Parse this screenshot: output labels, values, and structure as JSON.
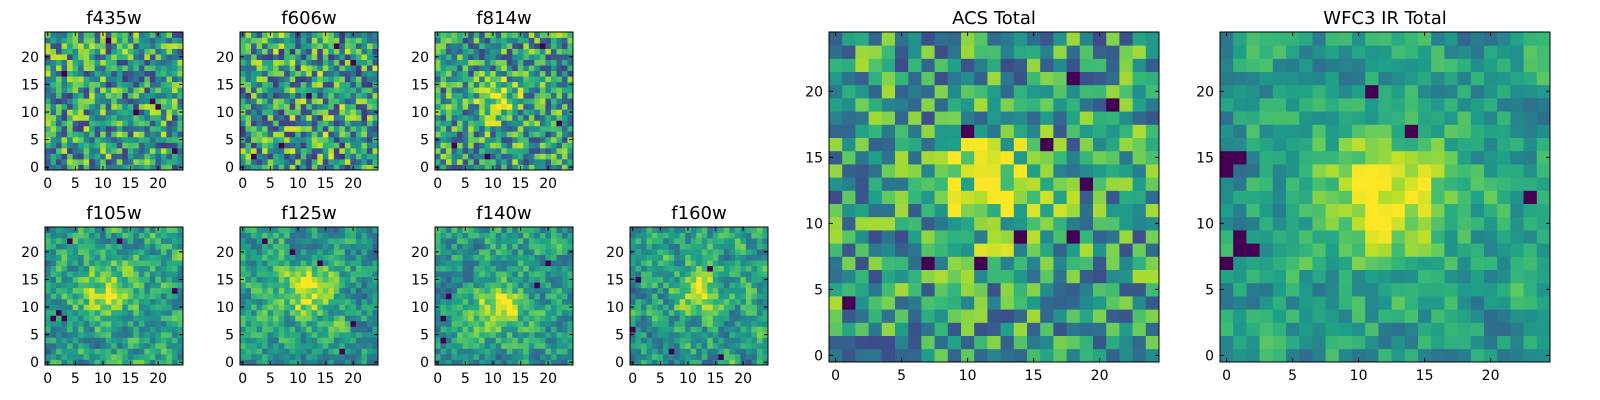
{
  "figure": {
    "colormap": "viridis",
    "background": "#ffffff"
  },
  "chart_data": [
    {
      "type": "heatmap",
      "title": "f435w",
      "grid_size": 25,
      "xticks": [
        "0",
        "5",
        "10",
        "15",
        "20"
      ],
      "yticks": [
        "0",
        "5",
        "10",
        "15",
        "20"
      ],
      "xlim": [
        -0.5,
        24.5
      ],
      "ylim": [
        -0.5,
        24.5
      ],
      "seed": 11,
      "smooth": 0,
      "noise": 0.75,
      "blob": [
        12,
        12,
        0.0,
        3
      ],
      "holes": [
        [
          19,
          12
        ],
        [
          3,
          17
        ],
        [
          11,
          23
        ],
        [
          20,
          11
        ],
        [
          23,
          3
        ],
        [
          16,
          10
        ]
      ]
    },
    {
      "type": "heatmap",
      "title": "f606w",
      "grid_size": 25,
      "xticks": [
        "0",
        "5",
        "10",
        "15",
        "20"
      ],
      "yticks": [
        "0",
        "5",
        "10",
        "15",
        "20"
      ],
      "xlim": [
        -0.5,
        24.5
      ],
      "ylim": [
        -0.5,
        24.5
      ],
      "seed": 23,
      "smooth": 0,
      "noise": 0.8,
      "blob": [
        12,
        12,
        0.1,
        3
      ],
      "holes": [
        [
          17,
          22
        ],
        [
          7,
          4
        ],
        [
          12,
          13
        ],
        [
          20,
          19
        ],
        [
          2,
          2
        ]
      ]
    },
    {
      "type": "heatmap",
      "title": "f814w",
      "grid_size": 25,
      "xticks": [
        "0",
        "5",
        "10",
        "15",
        "20"
      ],
      "yticks": [
        "0",
        "5",
        "10",
        "15",
        "20"
      ],
      "xlim": [
        -0.5,
        24.5
      ],
      "ylim": [
        -0.5,
        24.5
      ],
      "seed": 37,
      "smooth": 0,
      "noise": 0.7,
      "blob": [
        11,
        12,
        0.8,
        2.5
      ],
      "holes": [
        [
          19,
          22
        ],
        [
          9,
          2
        ],
        [
          3,
          4
        ],
        [
          22,
          8
        ]
      ]
    },
    {
      "type": "heatmap",
      "title": "f105w",
      "grid_size": 25,
      "xticks": [
        "0",
        "5",
        "10",
        "15",
        "20"
      ],
      "yticks": [
        "0",
        "5",
        "10",
        "15",
        "20"
      ],
      "xlim": [
        -0.5,
        24.5
      ],
      "ylim": [
        -0.5,
        24.5
      ],
      "seed": 41,
      "smooth": 1,
      "noise": 0.75,
      "blob": [
        11,
        13,
        0.8,
        3.5
      ],
      "holes": [
        [
          2,
          9
        ],
        [
          3,
          8
        ],
        [
          1,
          8
        ],
        [
          4,
          22
        ],
        [
          13,
          22
        ],
        [
          23,
          13
        ]
      ]
    },
    {
      "type": "heatmap",
      "title": "f125w",
      "grid_size": 25,
      "xticks": [
        "0",
        "5",
        "10",
        "15",
        "20"
      ],
      "yticks": [
        "0",
        "5",
        "10",
        "15",
        "20"
      ],
      "xlim": [
        -0.5,
        24.5
      ],
      "ylim": [
        -0.5,
        24.5
      ],
      "seed": 53,
      "smooth": 1,
      "noise": 0.7,
      "blob": [
        12,
        13,
        0.8,
        3.5
      ],
      "holes": [
        [
          4,
          22
        ],
        [
          9,
          20
        ],
        [
          18,
          2
        ],
        [
          14,
          18
        ],
        [
          20,
          7
        ]
      ]
    },
    {
      "type": "heatmap",
      "title": "f140w",
      "grid_size": 25,
      "xticks": [
        "0",
        "5",
        "10",
        "15",
        "20"
      ],
      "yticks": [
        "0",
        "5",
        "10",
        "15",
        "20"
      ],
      "xlim": [
        -0.5,
        24.5
      ],
      "ylim": [
        -0.5,
        24.5
      ],
      "seed": 67,
      "smooth": 1,
      "noise": 0.7,
      "blob": [
        11,
        10,
        0.9,
        3
      ],
      "holes": [
        [
          1,
          8
        ],
        [
          1,
          4
        ],
        [
          2,
          12
        ],
        [
          20,
          18
        ],
        [
          18,
          14
        ]
      ]
    },
    {
      "type": "heatmap",
      "title": "f160w",
      "grid_size": 25,
      "xticks": [
        "0",
        "5",
        "10",
        "15",
        "20"
      ],
      "yticks": [
        "0",
        "5",
        "10",
        "15",
        "20"
      ],
      "xlim": [
        -0.5,
        24.5
      ],
      "ylim": [
        -0.5,
        24.5
      ],
      "seed": 79,
      "smooth": 1,
      "noise": 0.75,
      "blob": [
        12,
        13,
        0.85,
        3
      ],
      "holes": [
        [
          14,
          17
        ],
        [
          1,
          15
        ],
        [
          0,
          6
        ],
        [
          16,
          1
        ],
        [
          7,
          2
        ]
      ]
    },
    {
      "type": "heatmap",
      "title": "ACS Total",
      "grid_size": 25,
      "xticks": [
        "0",
        "5",
        "10",
        "15",
        "20"
      ],
      "yticks": [
        "0",
        "5",
        "10",
        "15",
        "20"
      ],
      "xlim": [
        -0.5,
        24.5
      ],
      "ylim": [
        -0.5,
        24.5
      ],
      "seed": 97,
      "smooth": 0,
      "noise": 0.65,
      "blob": [
        12,
        13,
        0.9,
        2.8
      ],
      "holes": [
        [
          18,
          21
        ],
        [
          10,
          17
        ],
        [
          21,
          19
        ],
        [
          7,
          7
        ],
        [
          11,
          7
        ],
        [
          1,
          4
        ],
        [
          16,
          16
        ],
        [
          14,
          9
        ],
        [
          19,
          13
        ],
        [
          18,
          9
        ]
      ]
    },
    {
      "type": "heatmap",
      "title": "WFC3 IR Total",
      "grid_size": 25,
      "xticks": [
        "0",
        "5",
        "10",
        "15",
        "20"
      ],
      "yticks": [
        "0",
        "5",
        "10",
        "15",
        "20"
      ],
      "xlim": [
        -0.5,
        24.5
      ],
      "ylim": [
        -0.5,
        24.5
      ],
      "seed": 113,
      "smooth": 1,
      "noise": 0.6,
      "blob": [
        12,
        12,
        1.0,
        3.5
      ],
      "holes": [
        [
          0,
          15
        ],
        [
          1,
          15
        ],
        [
          0,
          14
        ],
        [
          1,
          9
        ],
        [
          2,
          8
        ],
        [
          1,
          8
        ],
        [
          0,
          7
        ],
        [
          11,
          20
        ],
        [
          14,
          17
        ],
        [
          23,
          12
        ]
      ]
    }
  ]
}
